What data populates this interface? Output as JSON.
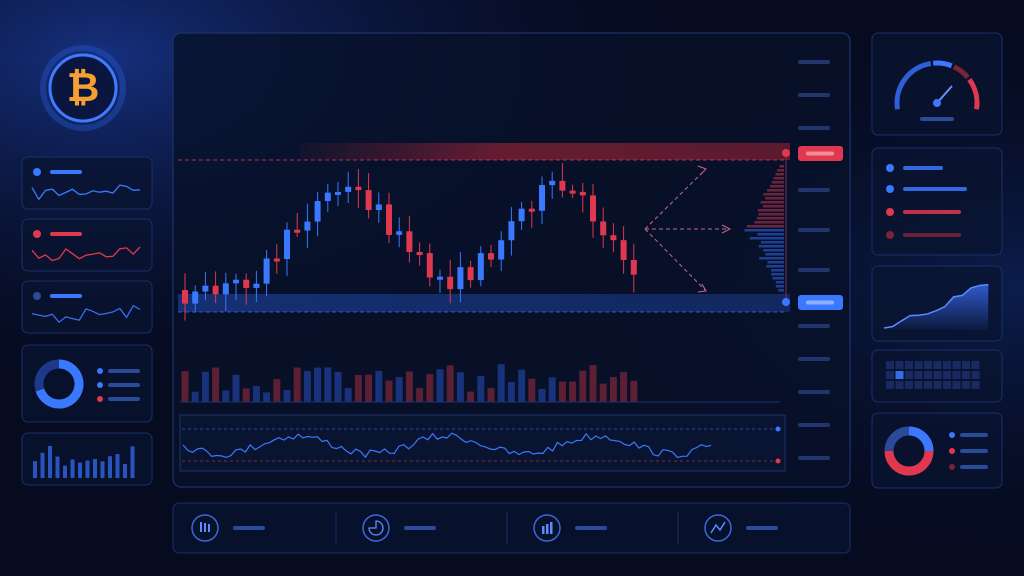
{
  "logo": {
    "symbol": "₿"
  }
}
